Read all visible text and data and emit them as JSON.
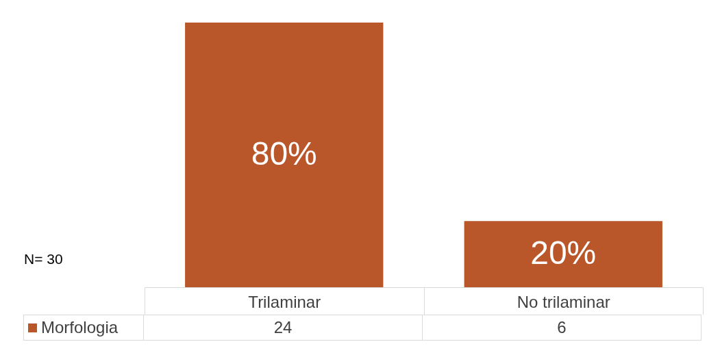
{
  "chart_data": {
    "type": "bar",
    "categories": [
      "Trilaminar",
      "No trilaminar"
    ],
    "series": [
      {
        "name": "Morfologia",
        "color": "#b9572b",
        "values": [
          24,
          6
        ]
      }
    ],
    "data_labels": true,
    "legend": "bottom",
    "annotations": [
      "80%",
      "20%",
      "N= 30"
    ]
  }
}
